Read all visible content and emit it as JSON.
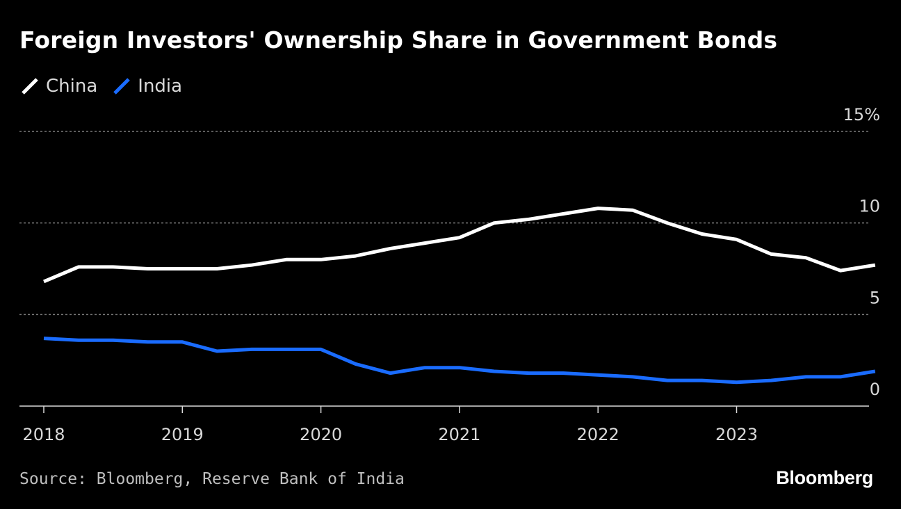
{
  "chart_data": {
    "type": "line",
    "title": "Foreign Investors' Ownership Share in Government Bonds",
    "xlabel": "",
    "ylabel": "",
    "ylim": [
      0,
      15
    ],
    "y_ticks": [
      {
        "value": 15,
        "label": "15%"
      },
      {
        "value": 10,
        "label": "10"
      },
      {
        "value": 5,
        "label": "5"
      },
      {
        "value": 0,
        "label": "0"
      }
    ],
    "xlim": [
      2018,
      2024.2
    ],
    "x_ticks": [
      {
        "value": 2018,
        "label": "2018"
      },
      {
        "value": 2019,
        "label": "2019"
      },
      {
        "value": 2020,
        "label": "2020"
      },
      {
        "value": 2021,
        "label": "2021"
      },
      {
        "value": 2022,
        "label": "2022"
      },
      {
        "value": 2023,
        "label": "2023"
      }
    ],
    "x": [
      2018.0,
      2018.25,
      2018.5,
      2018.75,
      2019.0,
      2019.25,
      2019.5,
      2019.75,
      2020.0,
      2020.25,
      2020.5,
      2020.75,
      2021.0,
      2021.25,
      2021.5,
      2021.75,
      2022.0,
      2022.25,
      2022.5,
      2022.75,
      2023.0,
      2023.25,
      2023.5,
      2023.75,
      2024.0
    ],
    "series": [
      {
        "name": "China",
        "color": "#ffffff",
        "values": [
          6.8,
          7.6,
          7.6,
          7.5,
          7.5,
          7.5,
          7.7,
          8.0,
          8.0,
          8.2,
          8.6,
          8.9,
          9.2,
          10.0,
          10.2,
          10.5,
          10.8,
          10.7,
          10.0,
          9.4,
          9.1,
          8.3,
          8.1,
          7.4,
          7.7
        ]
      },
      {
        "name": "India",
        "color": "#1a6cff",
        "values": [
          3.7,
          3.6,
          3.6,
          3.5,
          3.5,
          3.0,
          3.1,
          3.1,
          3.1,
          2.3,
          1.8,
          2.1,
          2.1,
          1.9,
          1.8,
          1.8,
          1.7,
          1.6,
          1.4,
          1.4,
          1.3,
          1.4,
          1.6,
          1.6,
          1.9
        ]
      }
    ],
    "grid": true,
    "legend_position": "top-left"
  },
  "legend": {
    "china_label": "China",
    "india_label": "India"
  },
  "footer": {
    "source": "Source: Bloomberg, Reserve Bank of India",
    "brand": "Bloomberg"
  },
  "colors": {
    "background": "#000000",
    "grid": "#7a7a7a",
    "axis": "#d9d9d9"
  }
}
